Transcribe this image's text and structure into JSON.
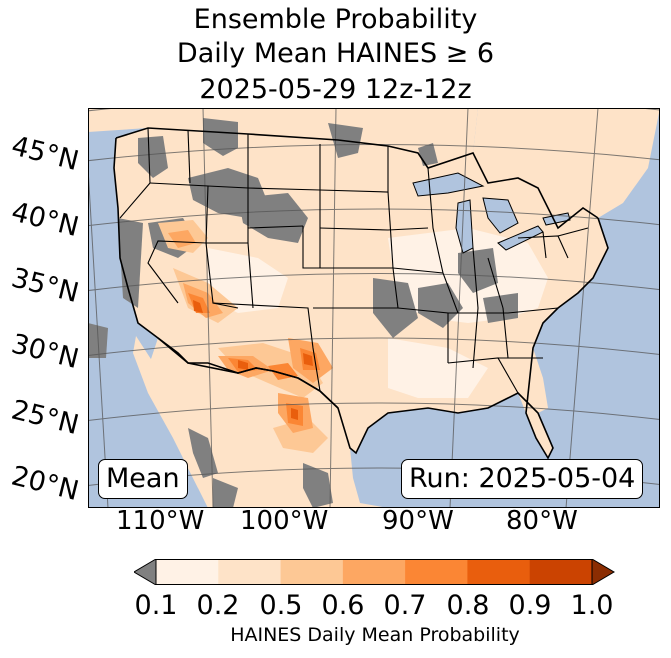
{
  "title": {
    "line1": "Ensemble Probability",
    "line2": "Daily Mean HAINES ≥ 6",
    "line3": "2025-05-29 12z-12z"
  },
  "map": {
    "projection": "lambert-conformal",
    "region": "CONUS",
    "ocean_color": "#b0c4de",
    "land_nodata_color": "#808080",
    "lat_labels": [
      "45°N",
      "40°N",
      "35°N",
      "30°N",
      "25°N",
      "20°N"
    ],
    "lon_labels": [
      "110°W",
      "100°W",
      "90°W",
      "80°W"
    ]
  },
  "labels": {
    "stat": "Mean",
    "run": "Run: 2025-05-04"
  },
  "colorbar": {
    "ticks": [
      "0.1",
      "0.2",
      "0.5",
      "0.6",
      "0.7",
      "0.8",
      "0.9",
      "1.0"
    ],
    "colors": [
      "#fff2e6",
      "#fee3c8",
      "#fdc895",
      "#fda762",
      "#fb8634",
      "#e95e0d",
      "#cb4301"
    ],
    "under_color": "#808080",
    "over_color": "#8b2d02",
    "label": "HAINES Daily Mean Probability"
  }
}
